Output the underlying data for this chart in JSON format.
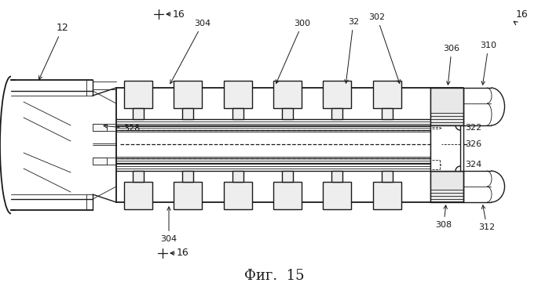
{
  "figure_label": "Фиг.  15",
  "bg_color": "#ffffff",
  "line_color": "#1a1a1a",
  "lw_main": 1.0,
  "lw_thin": 0.6,
  "lw_thick": 1.3
}
